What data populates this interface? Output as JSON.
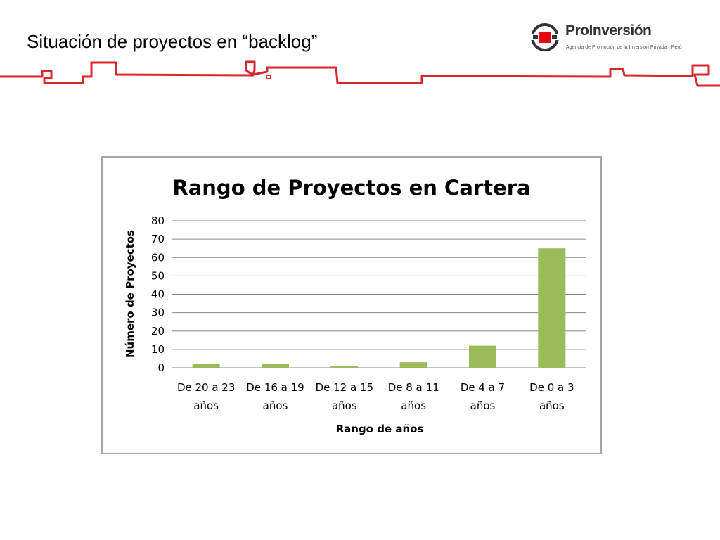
{
  "slide": {
    "title": "Situación de proyectos en “backlog”"
  },
  "logo": {
    "name": "ProInversión",
    "tagline": "Agencia de Promoción de la Inversión Privada - Perú",
    "colors": {
      "red": "#e30613",
      "dark": "#333333"
    }
  },
  "theme": {
    "header_line_color": "#d9262e",
    "bar_color": "#9bbb59",
    "grid_color": "#868686",
    "frame_color": "#a6a6a6"
  },
  "chart_data": {
    "type": "bar",
    "title": "Rango de Proyectos en Cartera",
    "xlabel": "Rango de años",
    "ylabel": "Número de Proyectos",
    "categories": [
      [
        "De 20 a 23",
        "años"
      ],
      [
        "De 16 a 19",
        "años"
      ],
      [
        "De 12 a 15",
        "años"
      ],
      [
        "De 8 a 11",
        "años"
      ],
      [
        "De 4 a 7",
        "años"
      ],
      [
        "De 0 a 3",
        "años"
      ]
    ],
    "values": [
      2,
      2,
      1,
      3,
      12,
      65
    ],
    "ylim": [
      0,
      80
    ],
    "yticks": [
      0,
      10,
      20,
      30,
      40,
      50,
      60,
      70,
      80
    ],
    "grid": true,
    "legend": "none"
  }
}
